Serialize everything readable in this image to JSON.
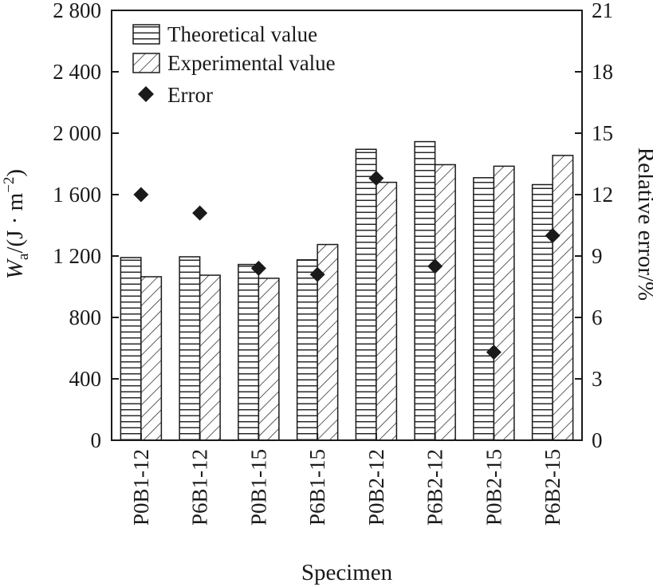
{
  "chart_data": {
    "type": "bar",
    "categories": [
      "P0B1-12",
      "P6B1-12",
      "P0B1-15",
      "P6B1-15",
      "P0B2-12",
      "P6B2-12",
      "P0B2-15",
      "P6B2-15"
    ],
    "series": [
      {
        "name": "Theoretical value",
        "values": [
          1190,
          1195,
          1145,
          1175,
          1895,
          1945,
          1710,
          1665
        ],
        "pattern": "horizontal-lines",
        "axis": "left"
      },
      {
        "name": "Experimental value",
        "values": [
          1065,
          1075,
          1055,
          1275,
          1680,
          1795,
          1785,
          1855
        ],
        "pattern": "diagonal-hatch",
        "axis": "left"
      },
      {
        "name": "Error",
        "values": [
          12.0,
          11.1,
          8.4,
          8.1,
          12.8,
          8.5,
          4.3,
          10.0
        ],
        "marker": "diamond",
        "axis": "right"
      }
    ],
    "xlabel": "Specimen",
    "ylabel": {
      "base": "W",
      "sub": "a",
      "rest": "/(J · m",
      "sup": "−2",
      "close": ")"
    },
    "ylabel_right": "Relative error/%",
    "ylim": [
      0,
      2800
    ],
    "ylim_right": [
      0,
      21
    ],
    "yticks": [
      0,
      400,
      800,
      1200,
      1600,
      2000,
      2400,
      2800
    ],
    "ytick_labels": [
      "0",
      "400",
      "800",
      "1 200",
      "1 600",
      "2 000",
      "2 400",
      "2 800"
    ],
    "yticks_right": [
      0,
      3,
      6,
      9,
      12,
      15,
      18,
      21
    ],
    "ytick_labels_right": [
      "0",
      "3",
      "6",
      "9",
      "12",
      "15",
      "18",
      "21"
    ],
    "legend_position": "top-left",
    "grid": false,
    "colors": {
      "ink": "#1a1a1a",
      "bar_fill": "#ffffff"
    }
  }
}
